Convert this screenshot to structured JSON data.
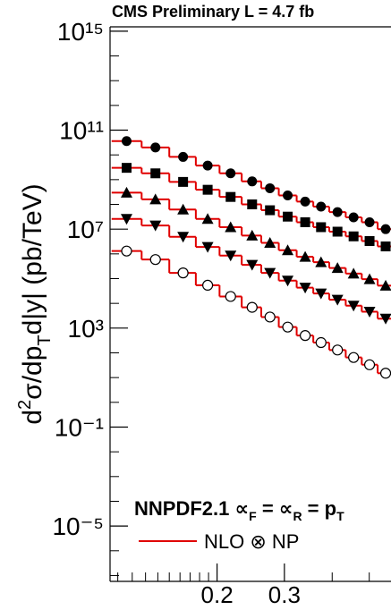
{
  "chart_data": {
    "type": "scatter",
    "title": "CMS Preliminary L = 4.7 fb",
    "y_label_parts": [
      "d",
      "2",
      "σ/dp",
      "T",
      "d|y| (pb/TeV)"
    ],
    "legend_title_parts": [
      "NNPDF2.1",
      " ∝",
      "F",
      " = ∝",
      "R",
      " = p",
      "T"
    ],
    "log_x": true,
    "log_y": true,
    "xlim": [
      0.105,
      0.57
    ],
    "xticks": [
      0.2,
      0.3
    ],
    "xminorticks": [
      0.11,
      0.12,
      0.13,
      0.14,
      0.15,
      0.16,
      0.17,
      0.18,
      0.19,
      0.4,
      0.5
    ],
    "ylim": [
      5.8e-08,
      1500000000000000.0
    ],
    "yticks": [
      {
        "value": 1000000000000000.0,
        "label": "10¹⁵"
      },
      {
        "value": 100000000000.0,
        "label": "10¹¹"
      },
      {
        "value": 10000000.0,
        "label": "10⁷"
      },
      {
        "value": 1000,
        "label": "10³"
      },
      {
        "value": 0.1,
        "label": "10⁻¹"
      },
      {
        "value": 1e-05,
        "label": "10⁻⁵"
      }
    ],
    "yminorticks": [
      100000000000000.0,
      10000000000000.0,
      1000000000000.0,
      10000000000.0,
      1000000000.0,
      100000000.0,
      1000000.0,
      100000.0,
      10000.0,
      100,
      10,
      1,
      0.01,
      0.001,
      0.0001,
      1e-06,
      1e-07
    ],
    "x": [
      0.116,
      0.138,
      0.163,
      0.189,
      0.217,
      0.247,
      0.275,
      0.306,
      0.34,
      0.374,
      0.413,
      0.455,
      0.501,
      0.552
    ],
    "bins": [
      0.106,
      0.127,
      0.15,
      0.176,
      0.203,
      0.232,
      0.261,
      0.29,
      0.323,
      0.357,
      0.393,
      0.434,
      0.478,
      0.526,
      0.58
    ],
    "series": [
      {
        "marker": "circle",
        "color": "#000000",
        "values": [
          36000000000.0,
          20000000000.0,
          8300000000.0,
          3700000000.0,
          1800000000.0,
          850000000.0,
          450000000.0,
          230000000.0,
          130000000.0,
          81000000.0,
          49000000.0,
          30000000.0,
          19000000.0,
          10000000.0
        ]
      },
      {
        "marker": "square",
        "color": "#000000",
        "values": [
          3000000000.0,
          1800000000.0,
          810000000.0,
          390000000.0,
          200000000.0,
          100000000.0,
          58000000.0,
          32000000.0,
          19000000.0,
          12000000.0,
          7900000.0,
          5100000.0,
          3300000.0,
          2000000.0
        ]
      },
      {
        "marker": "triangle-up",
        "color": "#000000",
        "values": [
          300000000.0,
          160000000.0,
          62000000.0,
          26000000.0,
          12000000.0,
          5500000.0,
          2800000.0,
          1400000.0,
          760000.0,
          460000.0,
          270000.0,
          160000.0,
          95000.0,
          52000.0
        ]
      },
      {
        "marker": "triangle-down",
        "color": "#000000",
        "values": [
          26000000.0,
          14000000.0,
          4900000.0,
          1900000.0,
          850000.0,
          360000.0,
          170000.0,
          83000.0,
          43000.0,
          25000.0,
          14000.0,
          8100.0,
          4600.0,
          2400.0
        ]
      },
      {
        "marker": "open-circle",
        "color": "#000000",
        "values": [
          1300000.0,
          590000.0,
          170000.0,
          54000.0,
          19000.0,
          6900.0,
          2800.0,
          1100.0,
          500,
          260,
          130,
          65,
          33,
          15
        ]
      }
    ],
    "theory": {
      "name": "NLO ⊗ NP",
      "color": "#e00000",
      "curves": [
        [
          36000000000.0,
          20000000000.0,
          8300000000.0,
          3700000000.0,
          1800000000.0,
          850000000.0,
          450000000.0,
          230000000.0,
          130000000.0,
          81000000.0,
          49000000.0,
          30000000.0,
          19000000.0,
          10000000.0
        ],
        [
          3000000000.0,
          1800000000.0,
          810000000.0,
          390000000.0,
          200000000.0,
          100000000.0,
          58000000.0,
          32000000.0,
          19000000.0,
          12000000.0,
          7900000.0,
          5100000.0,
          3300000.0,
          2000000.0
        ],
        [
          300000000.0,
          160000000.0,
          62000000.0,
          26000000.0,
          12000000.0,
          5500000.0,
          2800000.0,
          1400000.0,
          760000.0,
          460000.0,
          270000.0,
          160000.0,
          95000.0,
          52000.0
        ],
        [
          26000000.0,
          14000000.0,
          4900000.0,
          1900000.0,
          850000.0,
          360000.0,
          170000.0,
          83000.0,
          43000.0,
          25000.0,
          14000.0,
          8100.0,
          4600.0,
          2400.0
        ],
        [
          1300000.0,
          590000.0,
          170000.0,
          54000.0,
          19000.0,
          6900.0,
          2800.0,
          1100.0,
          500,
          260,
          130,
          65,
          33,
          15
        ]
      ]
    }
  }
}
